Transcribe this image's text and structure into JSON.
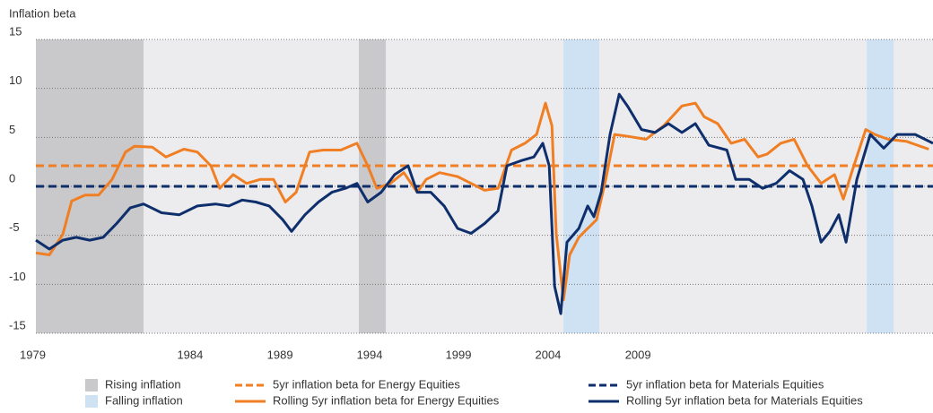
{
  "chart_data": {
    "type": "line",
    "y_label": "Inflation beta",
    "xlim": [
      1979,
      2012.33
    ],
    "xticks": [
      {
        "value": 1979,
        "label": "1979"
      },
      {
        "value": 1984.73,
        "label": "1984"
      },
      {
        "value": 1988.07,
        "label": "1989"
      },
      {
        "value": 1991.4,
        "label": "1994"
      },
      {
        "value": 1994.7,
        "label": "1999"
      },
      {
        "value": 1998.03,
        "label": "2004"
      },
      {
        "value": 2001.37,
        "label": "2009"
      }
    ],
    "ylim": [
      -15,
      15
    ],
    "yticks": [
      -15,
      -10,
      -5,
      0,
      5,
      10,
      15
    ],
    "grid": true,
    "bands": [
      {
        "name": "Rising inflation",
        "color": "#c9c9cb",
        "ranges": [
          [
            1979,
            1983
          ],
          [
            1991,
            1992
          ]
        ]
      },
      {
        "name": "Falling inflation",
        "color": "#cfe2f3",
        "ranges": [
          [
            1998.6,
            1999.93
          ],
          [
            2009.87,
            2010.87
          ]
        ]
      }
    ],
    "reference_lines": [
      {
        "name": "5yr inflation beta for Energy Equities",
        "color": "#f07f24",
        "value": 2.1
      },
      {
        "name": "5yr inflation beta for Materials Equities",
        "color": "#0e2f6b",
        "value": 0
      }
    ],
    "series": [
      {
        "name": "Rolling 5yr inflation beta for Energy Equities",
        "color": "#f07f24",
        "x": [
          1979,
          1979.5,
          1980,
          1980.33,
          1980.83,
          1981.33,
          1981.83,
          1982.33,
          1982.67,
          1983.33,
          1983.83,
          1984.5,
          1985,
          1985.5,
          1985.83,
          1986.33,
          1986.83,
          1987.33,
          1987.83,
          1988.27,
          1988.67,
          1989.17,
          1989.67,
          1990.33,
          1990.93,
          1991.33,
          1991.67,
          1992.17,
          1992.67,
          1993.17,
          1993.5,
          1994,
          1994.67,
          1995.17,
          1995.67,
          1996.17,
          1996.67,
          1997.17,
          1997.6,
          1997.93,
          1998.17,
          1998.33,
          1998.6,
          1998.83,
          1999.17,
          1999.5,
          1999.83,
          2000.17,
          2000.5,
          2001,
          2001.67,
          2002.33,
          2003,
          2003.5,
          2003.83,
          2004.33,
          2004.83,
          2005.33,
          2005.83,
          2006.17,
          2006.67,
          2007.17,
          2007.67,
          2008.17,
          2008.67,
          2009,
          2009.33,
          2009.83,
          2010.17,
          2010.67,
          2011.33,
          2012.17
        ],
        "values": [
          -6.8,
          -7,
          -4.9,
          -1.5,
          -0.9,
          -0.9,
          0.7,
          3.5,
          4.1,
          4.0,
          3.0,
          3.8,
          3.5,
          2.1,
          -0.2,
          1.2,
          0.3,
          0.7,
          0.7,
          -1.6,
          -0.6,
          3.5,
          3.7,
          3.7,
          4.4,
          2.1,
          -0.2,
          0.3,
          1.4,
          -0.6,
          0.7,
          1.4,
          1.0,
          0.3,
          -0.4,
          -0.2,
          3.7,
          4.4,
          5.3,
          8.5,
          6.2,
          -4.8,
          -11.6,
          -7.0,
          -5.2,
          -4.3,
          -3.4,
          0.7,
          5.3,
          5.1,
          4.8,
          6.2,
          8.2,
          8.5,
          7.1,
          6.4,
          4.4,
          4.8,
          3.0,
          3.3,
          4.4,
          4.8,
          2.1,
          0.3,
          1.2,
          -1.3,
          1.6,
          5.8,
          5.3,
          4.8,
          4.6,
          3.8
        ]
      },
      {
        "name": "Rolling 5yr inflation beta for Materials Equities",
        "color": "#0e2f6b",
        "x": [
          1979,
          1979.5,
          1980,
          1980.5,
          1981,
          1981.5,
          1982,
          1982.5,
          1983,
          1983.67,
          1984.33,
          1985,
          1985.67,
          1986.17,
          1986.67,
          1987.17,
          1987.67,
          1988.17,
          1988.5,
          1989,
          1989.5,
          1990,
          1990.5,
          1990.93,
          1991.33,
          1991.83,
          1992.33,
          1992.83,
          1993.17,
          1993.67,
          1994.17,
          1994.67,
          1995.17,
          1995.67,
          1996.17,
          1996.5,
          1997,
          1997.5,
          1997.83,
          1998.07,
          1998.27,
          1998.5,
          1998.73,
          1999.17,
          1999.5,
          1999.73,
          2000,
          2000.33,
          2000.67,
          2001,
          2001.5,
          2002,
          2002.5,
          2003,
          2003.5,
          2004,
          2004.67,
          2005,
          2005.5,
          2006,
          2006.5,
          2007,
          2007.5,
          2007.83,
          2008.17,
          2008.5,
          2008.83,
          2009.1,
          2009.5,
          2010,
          2010.5,
          2011,
          2011.67,
          2012.33
        ],
        "values": [
          -5.5,
          -6.4,
          -5.5,
          -5.2,
          -5.5,
          -5.2,
          -3.8,
          -2.2,
          -1.8,
          -2.7,
          -2.9,
          -2.0,
          -1.8,
          -2.0,
          -1.4,
          -1.6,
          -2.0,
          -3.4,
          -4.6,
          -2.9,
          -1.6,
          -0.6,
          -0.2,
          0.3,
          -1.6,
          -0.6,
          1.2,
          2.1,
          -0.6,
          -0.6,
          -2.0,
          -4.3,
          -4.8,
          -3.8,
          -2.5,
          2.1,
          2.6,
          3.0,
          4.4,
          2.1,
          -10.2,
          -13.0,
          -5.7,
          -4.3,
          -2.0,
          -3.1,
          -0.6,
          5.3,
          9.4,
          8.1,
          5.8,
          5.5,
          6.4,
          5.5,
          6.4,
          4.2,
          3.7,
          0.7,
          0.7,
          -0.2,
          0.3,
          1.6,
          0.7,
          -2.0,
          -5.7,
          -4.6,
          -2.9,
          -5.7,
          0.7,
          5.3,
          3.9,
          5.3,
          5.3,
          4.4
        ]
      }
    ]
  }
}
